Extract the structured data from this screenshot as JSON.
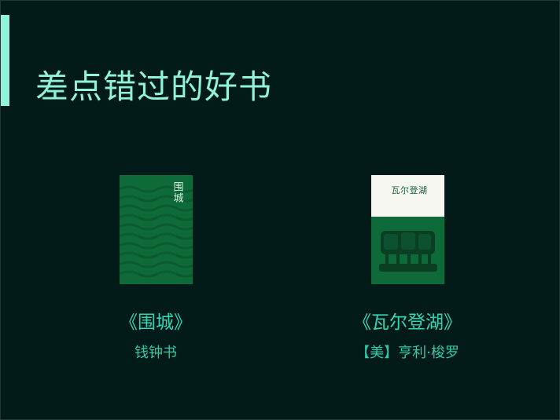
{
  "slide": {
    "title": "差点错过的好书",
    "accent_color": "#8ef3d8",
    "background_color": "#021a18"
  },
  "books": [
    {
      "title": "《围城》",
      "author": "钱钟书",
      "cover_text": "围城",
      "cover_color": "#0f6a3a"
    },
    {
      "title": "《瓦尔登湖》",
      "author": "【美】亨利·梭罗",
      "cover_text": "瓦尔登湖",
      "cover_color": "#0f6a3a"
    }
  ]
}
